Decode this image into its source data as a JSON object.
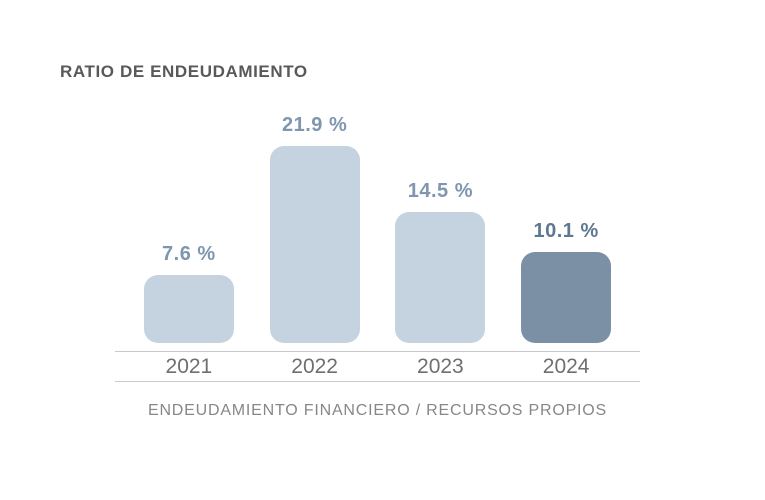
{
  "page": {
    "background": "#ffffff"
  },
  "chart_data": {
    "type": "bar",
    "title": "RATIO DE ENDEUDAMIENTO",
    "caption": "ENDEUDAMIENTO FINANCIERO / RECURSOS PROPIOS",
    "categories": [
      "2021",
      "2022",
      "2023",
      "2024"
    ],
    "values": [
      7.6,
      21.9,
      14.5,
      10.1
    ],
    "value_labels": [
      "7.6 %",
      "21.9 %",
      "14.5 %",
      "10.1 %"
    ],
    "unit": "%",
    "ylim": [
      0,
      22
    ],
    "grid": false,
    "legend": false,
    "highlight_index": 3,
    "colors": {
      "bar_default": "#c5d3e0",
      "bar_highlight": "#7c90a5",
      "value_label_default": "#7e96af",
      "value_label_highlight": "#5e7890",
      "title": "#595959",
      "axis_label": "#6f6f6f",
      "caption": "#878787",
      "axis_line": "#c9c9c9"
    }
  }
}
